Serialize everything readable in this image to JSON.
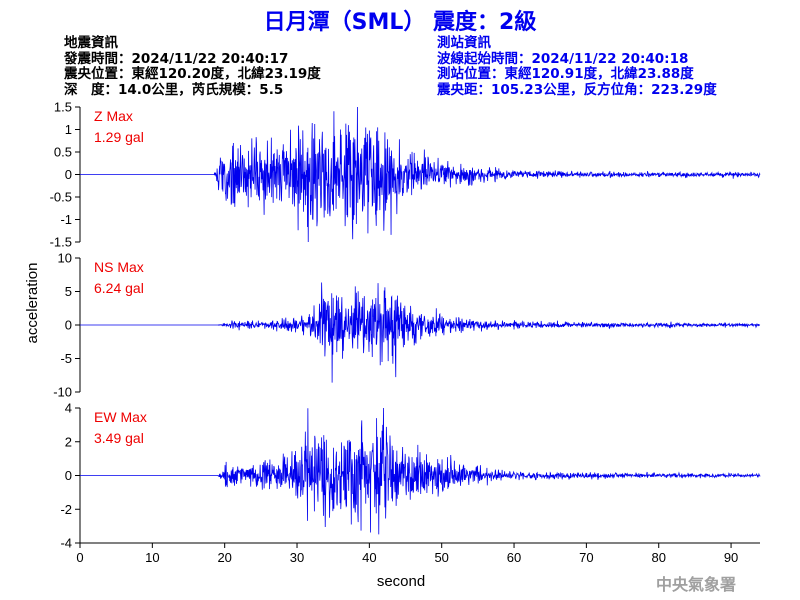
{
  "title": "日月潭（SML） 震度：2級",
  "event_info": {
    "heading": "地震資訊",
    "origin_time": "發震時間：2024/11/22 20:40:17",
    "epicenter": "震央位置：東經120.20度，北緯23.19度",
    "depth_magnitude": "深　度：14.0公里，芮氏規模：5.5"
  },
  "station_info": {
    "heading": "測站資訊",
    "wave_start": "波線起始時間：2024/11/22 20:40:18",
    "location": "測站位置：東經120.91度，北緯23.88度",
    "distance": "震央距：105.23公里，反方位角：223.29度"
  },
  "footer": "中央氣象署",
  "colors": {
    "title": "#0000ee",
    "trace": "#0000ee",
    "max_label": "#ee0000",
    "station_info": "#0000ee"
  },
  "chart_data": {
    "type": "line",
    "xlabel": "second",
    "ylabel": "acceleration",
    "xlim": [
      0,
      94
    ],
    "xticks": [
      0,
      10,
      20,
      30,
      40,
      50,
      60,
      70,
      80,
      90
    ],
    "panels": [
      {
        "name": "Z Max",
        "max_label": "1.29 gal",
        "max_value": 1.29,
        "ylim": [
          -1.5,
          1.5
        ],
        "yticks": [
          -1.5,
          -1,
          -0.5,
          0,
          0.5,
          1,
          1.5
        ],
        "ytick_labels": [
          "-1.5",
          "-1",
          "-0.5",
          "0",
          "0.5",
          "1",
          "1.5"
        ],
        "envelope": {
          "t": [
            0,
            18.5,
            19.5,
            22,
            26,
            30,
            33,
            36,
            39,
            42,
            45,
            50,
            55,
            60,
            70,
            80,
            94
          ],
          "a": [
            0,
            0,
            0.35,
            0.4,
            0.35,
            0.45,
            0.55,
            0.6,
            0.6,
            0.55,
            0.3,
            0.14,
            0.08,
            0.05,
            0.03,
            0.025,
            0.025
          ]
        },
        "peaks": [
          {
            "t": 42.0,
            "v": -1.25
          },
          {
            "t": 36.0,
            "v": 1.0
          },
          {
            "t": 33.5,
            "v": 0.95
          },
          {
            "t": 37.0,
            "v": -0.95
          }
        ]
      },
      {
        "name": "NS Max",
        "max_label": "6.24 gal",
        "max_value": 6.24,
        "ylim": [
          -10,
          10
        ],
        "yticks": [
          -10,
          -5,
          0,
          5,
          10
        ],
        "ytick_labels": [
          "-10",
          "-5",
          "0",
          "5",
          "10"
        ],
        "envelope": {
          "t": [
            0,
            19,
            21,
            28,
            32,
            33.5,
            37,
            40,
            41.5,
            45,
            50,
            55,
            60,
            70,
            80,
            94
          ],
          "a": [
            0,
            0,
            0.25,
            0.35,
            0.8,
            2.5,
            2.2,
            2.6,
            3.2,
            1.8,
            0.7,
            0.35,
            0.25,
            0.2,
            0.15,
            0.12
          ]
        },
        "peaks": [
          {
            "t": 41.2,
            "v": 6.24
          },
          {
            "t": 41.5,
            "v": -6.0
          },
          {
            "t": 33.8,
            "v": 3.6
          },
          {
            "t": 33.5,
            "v": -3.0
          }
        ]
      },
      {
        "name": "EW Max",
        "max_label": "3.49 gal",
        "max_value": 3.49,
        "ylim": [
          -4,
          4
        ],
        "yticks": [
          -4,
          -2,
          0,
          2,
          4
        ],
        "ytick_labels": [
          "-4",
          "-2",
          "0",
          "2",
          "4"
        ],
        "envelope": {
          "t": [
            0,
            19,
            20,
            24,
            28,
            33,
            36,
            39,
            42,
            45,
            48,
            52,
            56,
            60,
            70,
            80,
            94
          ],
          "a": [
            0,
            0,
            0.35,
            0.3,
            0.5,
            1.3,
            1.2,
            1.3,
            1.5,
            0.8,
            0.6,
            0.4,
            0.25,
            0.12,
            0.08,
            0.06,
            0.05
          ]
        },
        "peaks": [
          {
            "t": 41.3,
            "v": -3.49
          },
          {
            "t": 41.0,
            "v": 3.4
          },
          {
            "t": 34.5,
            "v": -2.5
          },
          {
            "t": 33.8,
            "v": 2.0
          }
        ]
      }
    ]
  }
}
